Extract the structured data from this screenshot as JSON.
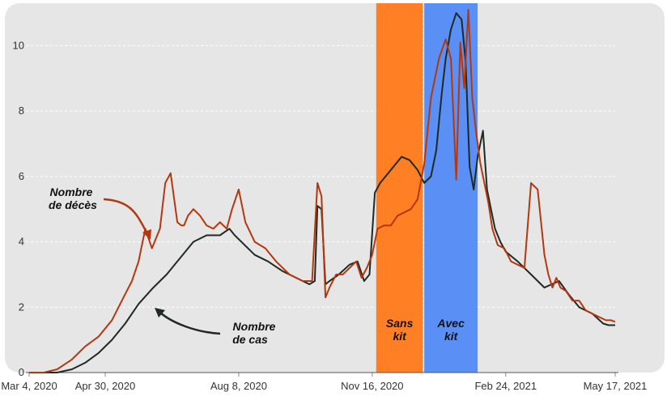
{
  "chart_data": {
    "type": "line",
    "title": "",
    "xlabel": "",
    "ylabel": "",
    "x_ticks": [
      "Mar 4, 2020",
      "Apr 30, 2020",
      "Aug 8, 2020",
      "Nov 16, 2020",
      "Feb 24, 2021",
      "May 17, 2021"
    ],
    "y_ticks": [
      "0",
      "2",
      "4",
      "6",
      "8",
      "10"
    ],
    "ylim": [
      0,
      11.2
    ],
    "xlim": [
      "2020-03-04",
      "2021-05-17"
    ],
    "grid": "horizontal-dashed",
    "legend": "none",
    "colors": {
      "background": "#e6e6e6",
      "deaths": "#b3380f",
      "cases": "#1f2a24",
      "sans_kit_band": "#ff7f24",
      "avec_kit_band": "#5a8ff5"
    },
    "bands": [
      {
        "label_line1": "Sans",
        "label_line2": "kit",
        "start": "2020-11-19",
        "end": "2020-12-24"
      },
      {
        "label_line1": "Avec",
        "label_line2": "kit",
        "start": "2020-12-25",
        "end": "2021-02-03"
      }
    ],
    "annotations": [
      {
        "line1": "Nombre",
        "line2": "de décès",
        "series": "deaths"
      },
      {
        "line1": "Nombre",
        "line2": "de cas",
        "series": "cases"
      }
    ],
    "series": [
      {
        "key": "deaths",
        "x": [
          "2020-03-04",
          "2020-03-15",
          "2020-03-25",
          "2020-04-05",
          "2020-04-15",
          "2020-04-25",
          "2020-05-05",
          "2020-05-15",
          "2020-05-20",
          "2020-05-25",
          "2020-05-30",
          "2020-06-04",
          "2020-06-10",
          "2020-06-14",
          "2020-06-18",
          "2020-06-23",
          "2020-06-26",
          "2020-06-28",
          "2020-07-01",
          "2020-07-05",
          "2020-07-10",
          "2020-07-15",
          "2020-07-20",
          "2020-07-25",
          "2020-07-30",
          "2020-08-03",
          "2020-08-08",
          "2020-08-13",
          "2020-08-20",
          "2020-08-28",
          "2020-09-05",
          "2020-09-15",
          "2020-09-25",
          "2020-10-02",
          "2020-10-06",
          "2020-10-09",
          "2020-10-12",
          "2020-10-15",
          "2020-10-20",
          "2020-10-25",
          "2020-10-30",
          "2020-11-04",
          "2020-11-08",
          "2020-11-12",
          "2020-11-16",
          "2020-11-20",
          "2020-11-25",
          "2020-11-30",
          "2020-12-05",
          "2020-12-10",
          "2020-12-15",
          "2020-12-20",
          "2020-12-25",
          "2020-12-30",
          "2021-01-05",
          "2021-01-10",
          "2021-01-14",
          "2021-01-18",
          "2021-01-21",
          "2021-01-24",
          "2021-01-27",
          "2021-01-30",
          "2021-02-02",
          "2021-02-05",
          "2021-02-08",
          "2021-02-11",
          "2021-02-14",
          "2021-02-18",
          "2021-02-23",
          "2021-02-28",
          "2021-03-05",
          "2021-03-10",
          "2021-03-15",
          "2021-03-20",
          "2021-03-25",
          "2021-03-28",
          "2021-03-31",
          "2021-04-03",
          "2021-04-06",
          "2021-04-10",
          "2021-04-15",
          "2021-04-20",
          "2021-04-25",
          "2021-04-30",
          "2021-05-05",
          "2021-05-10",
          "2021-05-14",
          "2021-05-17"
        ],
        "y": [
          0,
          0,
          0.1,
          0.4,
          0.8,
          1.1,
          1.6,
          2.4,
          2.8,
          3.4,
          4.4,
          3.8,
          4.4,
          5.8,
          6.1,
          4.6,
          4.5,
          4.5,
          4.8,
          5.0,
          4.8,
          4.5,
          4.4,
          4.6,
          4.4,
          5.0,
          5.6,
          4.6,
          4.0,
          3.8,
          3.4,
          3.0,
          2.8,
          2.8,
          5.8,
          5.4,
          2.3,
          2.6,
          3.0,
          3.0,
          3.2,
          3.4,
          2.9,
          3.2,
          3.6,
          4.4,
          4.5,
          4.5,
          4.8,
          4.9,
          5.0,
          5.3,
          6.4,
          8.4,
          9.6,
          10.2,
          9.6,
          5.9,
          10.1,
          8.7,
          11.1,
          8.4,
          7.3,
          6.4,
          5.8,
          5.2,
          4.4,
          3.9,
          3.8,
          3.4,
          3.3,
          3.2,
          5.8,
          5.6,
          3.6,
          3.0,
          2.6,
          2.9,
          2.6,
          2.5,
          2.2,
          2.2,
          1.9,
          1.8,
          1.7,
          1.6,
          1.6,
          1.55
        ]
      },
      {
        "key": "cases",
        "x": [
          "2020-03-04",
          "2020-03-15",
          "2020-03-25",
          "2020-04-05",
          "2020-04-15",
          "2020-04-25",
          "2020-05-05",
          "2020-05-15",
          "2020-05-25",
          "2020-06-05",
          "2020-06-15",
          "2020-06-25",
          "2020-07-05",
          "2020-07-15",
          "2020-07-25",
          "2020-08-01",
          "2020-08-05",
          "2020-08-10",
          "2020-08-20",
          "2020-08-30",
          "2020-09-10",
          "2020-09-20",
          "2020-09-30",
          "2020-10-04",
          "2020-10-06",
          "2020-10-09",
          "2020-10-12",
          "2020-10-15",
          "2020-10-22",
          "2020-10-30",
          "2020-11-05",
          "2020-11-10",
          "2020-11-14",
          "2020-11-18",
          "2020-11-22",
          "2020-11-26",
          "2020-12-02",
          "2020-12-08",
          "2020-12-14",
          "2020-12-20",
          "2020-12-25",
          "2020-12-30",
          "2021-01-03",
          "2021-01-07",
          "2021-01-10",
          "2021-01-14",
          "2021-01-18",
          "2021-01-22",
          "2021-01-25",
          "2021-01-28",
          "2021-01-31",
          "2021-02-03",
          "2021-02-07",
          "2021-02-10",
          "2021-02-13",
          "2021-02-16",
          "2021-02-20",
          "2021-02-24",
          "2021-03-05",
          "2021-03-15",
          "2021-03-25",
          "2021-04-05",
          "2021-04-12",
          "2021-04-20",
          "2021-04-30",
          "2021-05-08",
          "2021-05-12",
          "2021-05-17"
        ],
        "y": [
          0,
          0,
          0,
          0.1,
          0.3,
          0.6,
          1.0,
          1.5,
          2.1,
          2.6,
          3.0,
          3.5,
          4.0,
          4.2,
          4.2,
          4.4,
          4.2,
          4.0,
          3.6,
          3.4,
          3.1,
          2.9,
          2.7,
          2.8,
          5.1,
          5.0,
          2.7,
          2.8,
          3.0,
          3.3,
          3.4,
          2.8,
          3.0,
          5.5,
          5.8,
          6.0,
          6.3,
          6.6,
          6.5,
          6.2,
          5.8,
          6.0,
          6.8,
          8.5,
          9.6,
          10.5,
          11.0,
          10.8,
          9.5,
          6.3,
          5.6,
          6.6,
          7.4,
          5.6,
          5.0,
          4.4,
          4.0,
          3.7,
          3.4,
          3.0,
          2.6,
          2.8,
          2.4,
          2.0,
          1.8,
          1.5,
          1.45,
          1.45
        ]
      }
    ]
  }
}
